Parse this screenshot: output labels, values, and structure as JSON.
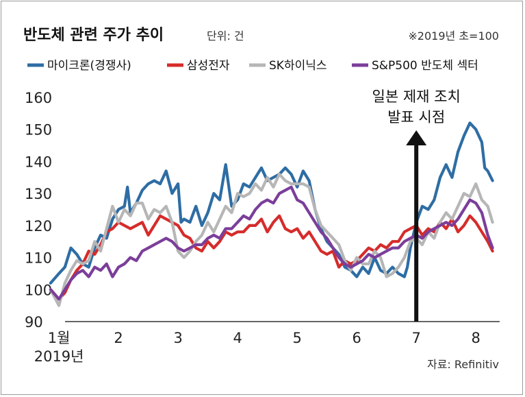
{
  "chart_data": {
    "type": "line",
    "title": "반도체 관련 주가 추이",
    "unit_label": "단위: 건",
    "base_note": "※2019년 초=100",
    "source": "자료: Refinitiv",
    "annotation": {
      "line1": "일본 제재 조치",
      "line2": "발표 시점",
      "x": 7.0
    },
    "xlabel": "",
    "ylabel": "",
    "ylim": [
      90,
      160
    ],
    "yticks": [
      90,
      100,
      110,
      120,
      130,
      140,
      150,
      160
    ],
    "xlim": [
      0.7,
      8.4
    ],
    "x_ticks": [
      {
        "x": 1,
        "line1": "1월",
        "line2": "2019년"
      },
      {
        "x": 2,
        "line1": "2"
      },
      {
        "x": 3,
        "line1": "3"
      },
      {
        "x": 4,
        "line1": "4"
      },
      {
        "x": 5,
        "line1": "5"
      },
      {
        "x": 6,
        "line1": "6"
      },
      {
        "x": 7,
        "line1": "7"
      },
      {
        "x": 8,
        "line1": "8"
      }
    ],
    "legend_position": "top",
    "grid": false,
    "series": [
      {
        "name": "마이크론(경쟁사)",
        "color": "#2e6da4",
        "points": [
          [
            0.86,
            102
          ],
          [
            1.0,
            105
          ],
          [
            1.1,
            107
          ],
          [
            1.2,
            113
          ],
          [
            1.3,
            111
          ],
          [
            1.4,
            108
          ],
          [
            1.5,
            107
          ],
          [
            1.6,
            113
          ],
          [
            1.7,
            117
          ],
          [
            1.8,
            116
          ],
          [
            1.9,
            122
          ],
          [
            2.0,
            125
          ],
          [
            2.1,
            126
          ],
          [
            2.15,
            132
          ],
          [
            2.2,
            124
          ],
          [
            2.3,
            127
          ],
          [
            2.4,
            131
          ],
          [
            2.5,
            133
          ],
          [
            2.6,
            134
          ],
          [
            2.7,
            133
          ],
          [
            2.8,
            137
          ],
          [
            2.9,
            130
          ],
          [
            3.0,
            133
          ],
          [
            3.05,
            121
          ],
          [
            3.1,
            122
          ],
          [
            3.2,
            121
          ],
          [
            3.3,
            126
          ],
          [
            3.4,
            120
          ],
          [
            3.5,
            124
          ],
          [
            3.6,
            130
          ],
          [
            3.7,
            128
          ],
          [
            3.8,
            139
          ],
          [
            3.9,
            126
          ],
          [
            4.0,
            128
          ],
          [
            4.1,
            133
          ],
          [
            4.2,
            132
          ],
          [
            4.3,
            135
          ],
          [
            4.4,
            138
          ],
          [
            4.5,
            134
          ],
          [
            4.6,
            135
          ],
          [
            4.7,
            136
          ],
          [
            4.8,
            138
          ],
          [
            4.9,
            136
          ],
          [
            5.0,
            132
          ],
          [
            5.1,
            137
          ],
          [
            5.2,
            134
          ],
          [
            5.3,
            125
          ],
          [
            5.4,
            119
          ],
          [
            5.5,
            115
          ],
          [
            5.6,
            113
          ],
          [
            5.7,
            111
          ],
          [
            5.8,
            107
          ],
          [
            5.9,
            106
          ],
          [
            6.0,
            104
          ],
          [
            6.1,
            107
          ],
          [
            6.2,
            105
          ],
          [
            6.3,
            110
          ],
          [
            6.4,
            106
          ],
          [
            6.5,
            105
          ],
          [
            6.6,
            107
          ],
          [
            6.7,
            105
          ],
          [
            6.8,
            104
          ],
          [
            6.85,
            107
          ],
          [
            6.9,
            113
          ],
          [
            7.0,
            121
          ],
          [
            7.1,
            126
          ],
          [
            7.2,
            125
          ],
          [
            7.3,
            128
          ],
          [
            7.4,
            135
          ],
          [
            7.5,
            139
          ],
          [
            7.6,
            135
          ],
          [
            7.7,
            143
          ],
          [
            7.8,
            148
          ],
          [
            7.9,
            152
          ],
          [
            8.0,
            150
          ],
          [
            8.1,
            146
          ],
          [
            8.15,
            138
          ],
          [
            8.2,
            137
          ],
          [
            8.28,
            134
          ]
        ]
      },
      {
        "name": "삼성전자",
        "color": "#d52c2b",
        "points": [
          [
            0.86,
            100
          ],
          [
            1.0,
            97
          ],
          [
            1.1,
            99
          ],
          [
            1.2,
            103
          ],
          [
            1.3,
            106
          ],
          [
            1.4,
            108
          ],
          [
            1.5,
            112
          ],
          [
            1.6,
            111
          ],
          [
            1.7,
            114
          ],
          [
            1.8,
            118
          ],
          [
            1.9,
            119
          ],
          [
            2.0,
            121
          ],
          [
            2.1,
            120
          ],
          [
            2.2,
            119
          ],
          [
            2.3,
            120
          ],
          [
            2.4,
            121
          ],
          [
            2.5,
            117
          ],
          [
            2.6,
            120
          ],
          [
            2.7,
            123
          ],
          [
            2.8,
            122
          ],
          [
            2.9,
            121
          ],
          [
            3.0,
            120
          ],
          [
            3.1,
            117
          ],
          [
            3.2,
            116
          ],
          [
            3.3,
            113
          ],
          [
            3.4,
            112
          ],
          [
            3.5,
            115
          ],
          [
            3.6,
            113
          ],
          [
            3.7,
            115
          ],
          [
            3.8,
            118
          ],
          [
            3.9,
            117
          ],
          [
            4.0,
            118
          ],
          [
            4.1,
            118
          ],
          [
            4.2,
            120
          ],
          [
            4.3,
            120
          ],
          [
            4.4,
            122
          ],
          [
            4.5,
            118
          ],
          [
            4.6,
            121
          ],
          [
            4.7,
            123
          ],
          [
            4.8,
            119
          ],
          [
            4.9,
            118
          ],
          [
            5.0,
            119
          ],
          [
            5.1,
            116
          ],
          [
            5.2,
            118
          ],
          [
            5.3,
            115
          ],
          [
            5.4,
            112
          ],
          [
            5.5,
            111
          ],
          [
            5.6,
            112
          ],
          [
            5.7,
            107
          ],
          [
            5.8,
            109
          ],
          [
            5.9,
            108
          ],
          [
            6.0,
            109
          ],
          [
            6.1,
            111
          ],
          [
            6.2,
            113
          ],
          [
            6.3,
            112
          ],
          [
            6.4,
            114
          ],
          [
            6.5,
            113
          ],
          [
            6.6,
            115
          ],
          [
            6.7,
            115
          ],
          [
            6.8,
            118
          ],
          [
            6.9,
            119
          ],
          [
            7.0,
            120
          ],
          [
            7.1,
            117
          ],
          [
            7.2,
            119
          ],
          [
            7.3,
            118
          ],
          [
            7.4,
            121
          ],
          [
            7.5,
            119
          ],
          [
            7.6,
            122
          ],
          [
            7.7,
            118
          ],
          [
            7.8,
            120
          ],
          [
            7.9,
            123
          ],
          [
            8.0,
            121
          ],
          [
            8.1,
            118
          ],
          [
            8.2,
            115
          ],
          [
            8.28,
            112
          ]
        ]
      },
      {
        "name": "SK하이닉스",
        "color": "#b6b6b6",
        "points": [
          [
            0.86,
            100
          ],
          [
            1.0,
            95
          ],
          [
            1.1,
            102
          ],
          [
            1.2,
            106
          ],
          [
            1.3,
            109
          ],
          [
            1.4,
            108
          ],
          [
            1.5,
            109
          ],
          [
            1.6,
            115
          ],
          [
            1.7,
            112
          ],
          [
            1.8,
            119
          ],
          [
            1.9,
            126
          ],
          [
            2.0,
            121
          ],
          [
            2.1,
            125
          ],
          [
            2.2,
            123
          ],
          [
            2.3,
            127
          ],
          [
            2.4,
            127
          ],
          [
            2.5,
            122
          ],
          [
            2.6,
            125
          ],
          [
            2.7,
            124
          ],
          [
            2.8,
            126
          ],
          [
            2.9,
            121
          ],
          [
            3.0,
            112
          ],
          [
            3.1,
            110
          ],
          [
            3.2,
            112
          ],
          [
            3.3,
            115
          ],
          [
            3.4,
            117
          ],
          [
            3.5,
            121
          ],
          [
            3.6,
            118
          ],
          [
            3.7,
            122
          ],
          [
            3.8,
            126
          ],
          [
            3.9,
            124
          ],
          [
            4.0,
            130
          ],
          [
            4.1,
            129
          ],
          [
            4.2,
            130
          ],
          [
            4.3,
            133
          ],
          [
            4.4,
            131
          ],
          [
            4.5,
            135
          ],
          [
            4.6,
            132
          ],
          [
            4.7,
            136
          ],
          [
            4.8,
            134
          ],
          [
            4.9,
            133
          ],
          [
            5.0,
            133
          ],
          [
            5.1,
            133
          ],
          [
            5.2,
            132
          ],
          [
            5.3,
            125
          ],
          [
            5.4,
            120
          ],
          [
            5.5,
            118
          ],
          [
            5.6,
            116
          ],
          [
            5.7,
            114
          ],
          [
            5.8,
            109
          ],
          [
            5.9,
            106
          ],
          [
            6.0,
            110
          ],
          [
            6.1,
            108
          ],
          [
            6.2,
            108
          ],
          [
            6.3,
            112
          ],
          [
            6.4,
            110
          ],
          [
            6.5,
            104
          ],
          [
            6.6,
            105
          ],
          [
            6.7,
            107
          ],
          [
            6.8,
            110
          ],
          [
            6.9,
            115
          ],
          [
            7.0,
            116
          ],
          [
            7.1,
            114
          ],
          [
            7.2,
            118
          ],
          [
            7.3,
            116
          ],
          [
            7.4,
            121
          ],
          [
            7.5,
            124
          ],
          [
            7.6,
            122
          ],
          [
            7.7,
            126
          ],
          [
            7.8,
            130
          ],
          [
            7.9,
            129
          ],
          [
            8.0,
            133
          ],
          [
            8.1,
            128
          ],
          [
            8.2,
            126
          ],
          [
            8.28,
            121
          ]
        ]
      },
      {
        "name": "S&P500 반도체 섹터",
        "color": "#7b3e9a",
        "points": [
          [
            0.86,
            100
          ],
          [
            1.0,
            97
          ],
          [
            1.1,
            100
          ],
          [
            1.2,
            103
          ],
          [
            1.3,
            105
          ],
          [
            1.4,
            106
          ],
          [
            1.5,
            104
          ],
          [
            1.6,
            107
          ],
          [
            1.7,
            106
          ],
          [
            1.8,
            108
          ],
          [
            1.9,
            104
          ],
          [
            2.0,
            107
          ],
          [
            2.1,
            108
          ],
          [
            2.2,
            110
          ],
          [
            2.3,
            109
          ],
          [
            2.4,
            112
          ],
          [
            2.5,
            113
          ],
          [
            2.6,
            114
          ],
          [
            2.7,
            115
          ],
          [
            2.8,
            116
          ],
          [
            2.9,
            115
          ],
          [
            3.0,
            113
          ],
          [
            3.1,
            112
          ],
          [
            3.2,
            113
          ],
          [
            3.3,
            114
          ],
          [
            3.4,
            114
          ],
          [
            3.5,
            116
          ],
          [
            3.6,
            117
          ],
          [
            3.7,
            116
          ],
          [
            3.8,
            119
          ],
          [
            3.9,
            119
          ],
          [
            4.0,
            121
          ],
          [
            4.1,
            123
          ],
          [
            4.2,
            122
          ],
          [
            4.3,
            125
          ],
          [
            4.4,
            127
          ],
          [
            4.5,
            128
          ],
          [
            4.6,
            127
          ],
          [
            4.7,
            130
          ],
          [
            4.8,
            131
          ],
          [
            4.9,
            132
          ],
          [
            5.0,
            128
          ],
          [
            5.1,
            127
          ],
          [
            5.2,
            124
          ],
          [
            5.3,
            121
          ],
          [
            5.4,
            118
          ],
          [
            5.5,
            116
          ],
          [
            5.6,
            113
          ],
          [
            5.7,
            110
          ],
          [
            5.8,
            108
          ],
          [
            5.9,
            107
          ],
          [
            6.0,
            108
          ],
          [
            6.1,
            109
          ],
          [
            6.2,
            111
          ],
          [
            6.3,
            110
          ],
          [
            6.4,
            111
          ],
          [
            6.5,
            112
          ],
          [
            6.6,
            113
          ],
          [
            6.7,
            113
          ],
          [
            6.8,
            115
          ],
          [
            6.9,
            116
          ],
          [
            7.0,
            117
          ],
          [
            7.1,
            116
          ],
          [
            7.2,
            118
          ],
          [
            7.3,
            119
          ],
          [
            7.4,
            120
          ],
          [
            7.5,
            121
          ],
          [
            7.6,
            120
          ],
          [
            7.7,
            122
          ],
          [
            7.8,
            125
          ],
          [
            7.9,
            128
          ],
          [
            8.0,
            127
          ],
          [
            8.1,
            124
          ],
          [
            8.2,
            117
          ],
          [
            8.28,
            113
          ]
        ]
      }
    ]
  }
}
